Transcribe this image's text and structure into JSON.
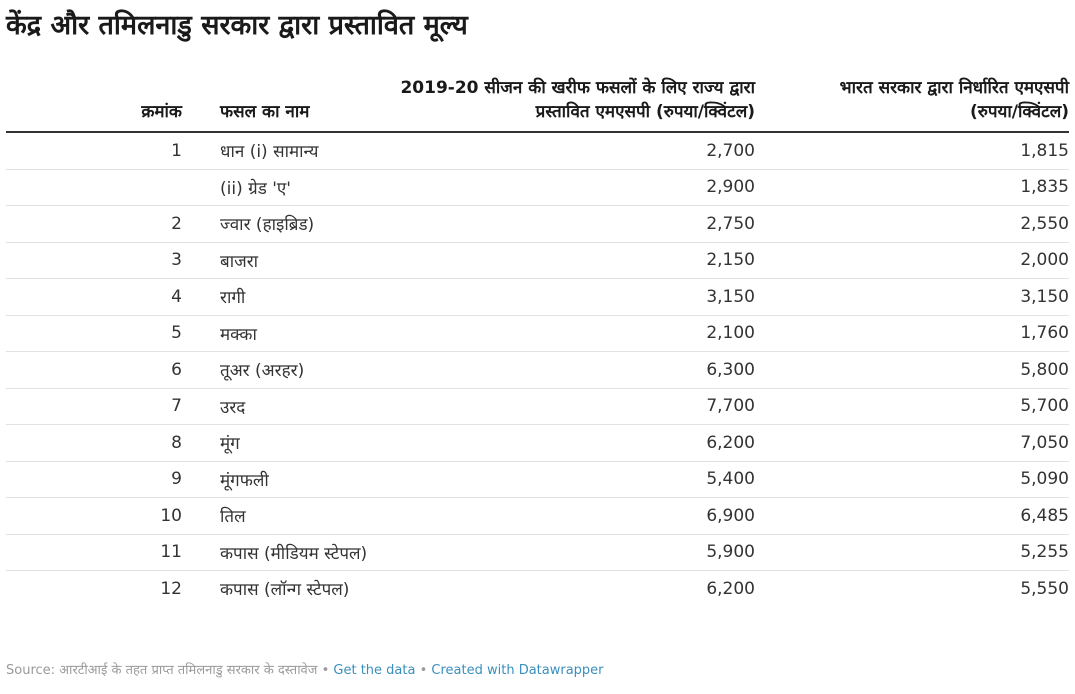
{
  "title": "केंद्र और तमिलनाडु सरकार द्वारा प्रस्तावित मूल्य",
  "columns": {
    "serial": "क्रमांक",
    "crop": "फसल का नाम",
    "state_msp": "2019-20 सीजन की खरीफ फसलों के लिए राज्य द्वारा प्रस्तावित एमएसपी (रुपया/क्विंटल)",
    "center_msp": "भारत सरकार द्वारा निर्धारित एमएसपी (रुपया/क्विंटल)"
  },
  "chart_data": {
    "type": "table",
    "title": "केंद्र और तमिलनाडु सरकार द्वारा प्रस्तावित मूल्य",
    "columns": [
      "क्रमांक",
      "फसल का नाम",
      "2019-20 सीजन की खरीफ फसलों के लिए राज्य द्वारा प्रस्तावित एमएसपी (रुपया/क्विंटल)",
      "भारत सरकार द्वारा निर्धारित एमएसपी (रुपया/क्विंटल)"
    ],
    "rows": [
      {
        "serial": "1",
        "crop": "धान (i) सामान्य",
        "state": "2,700",
        "center": "1,815"
      },
      {
        "serial": "",
        "crop": "(ii) ग्रेड 'ए'",
        "state": "2,900",
        "center": "1,835"
      },
      {
        "serial": "2",
        "crop": "ज्वार (हाइब्रिड)",
        "state": "2,750",
        "center": "2,550"
      },
      {
        "serial": "3",
        "crop": "बाजरा",
        "state": "2,150",
        "center": "2,000"
      },
      {
        "serial": "4",
        "crop": "रागी",
        "state": "3,150",
        "center": "3,150"
      },
      {
        "serial": "5",
        "crop": "मक्का",
        "state": "2,100",
        "center": "1,760"
      },
      {
        "serial": "6",
        "crop": "तूअर (अरहर)",
        "state": "6,300",
        "center": "5,800"
      },
      {
        "serial": "7",
        "crop": "उरद",
        "state": "7,700",
        "center": "5,700"
      },
      {
        "serial": "8",
        "crop": "मूंग",
        "state": "6,200",
        "center": "7,050"
      },
      {
        "serial": "9",
        "crop": "मूंगफली",
        "state": "5,400",
        "center": "5,090"
      },
      {
        "serial": "10",
        "crop": "तिल",
        "state": "6,900",
        "center": "6,485"
      },
      {
        "serial": "11",
        "crop": "कपास (मीडियम स्टेपल)",
        "state": "5,900",
        "center": "5,255"
      },
      {
        "serial": "12",
        "crop": "कपास (लॉन्ग स्टेपल)",
        "state": "6,200",
        "center": "5,550"
      }
    ]
  },
  "footer": {
    "source": "Source: आरटीआई के तहत प्राप्त तमिलनाडु सरकार के दस्तावेज",
    "separator": "•",
    "get_data": "Get the data",
    "created_with": "Created with Datawrapper"
  }
}
